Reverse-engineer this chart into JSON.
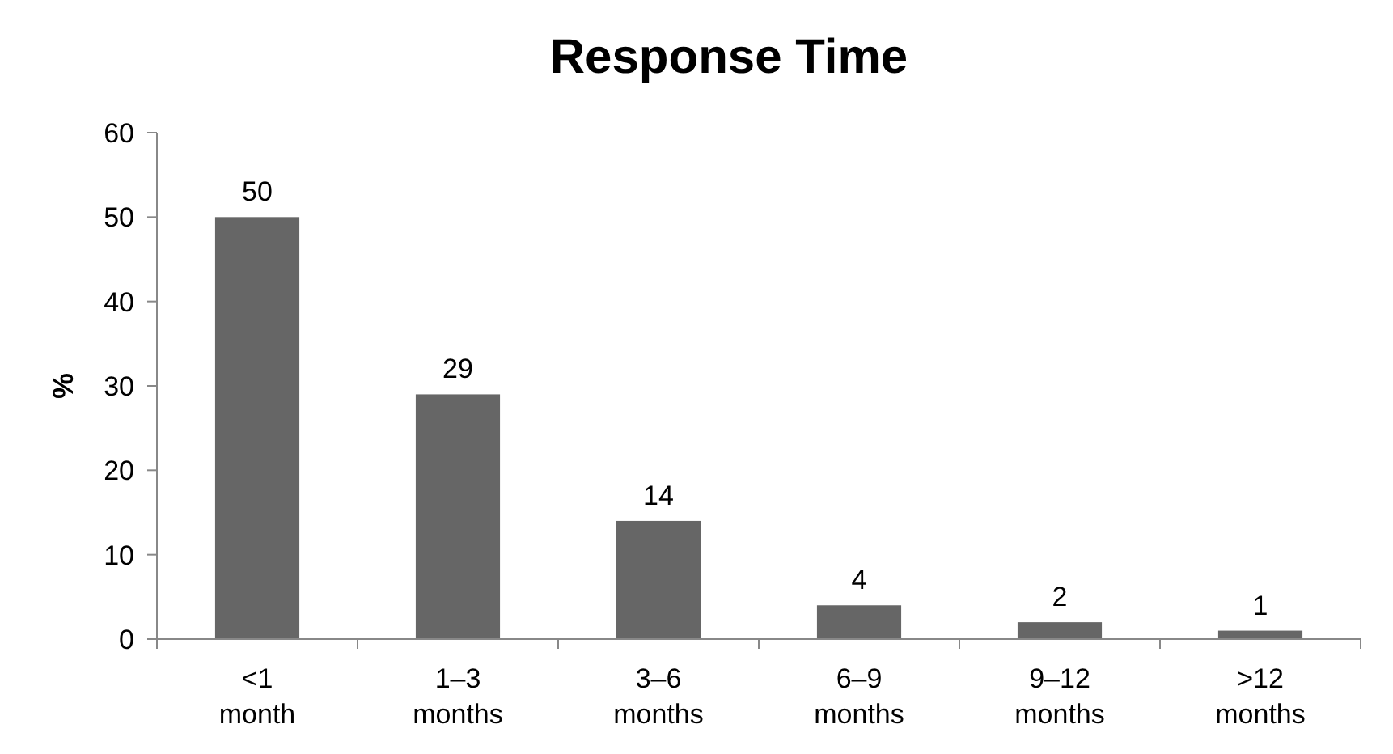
{
  "chart_data": {
    "type": "bar",
    "title": "Response Time",
    "ylabel": "%",
    "categories": [
      "<1\nmonth",
      "1–3\nmonths",
      "3–6\nmonths",
      "6–9\nmonths",
      "9–12\nmonths",
      ">12\nmonths"
    ],
    "values": [
      50,
      29,
      14,
      4,
      2,
      1
    ],
    "color": "#666666",
    "ylim": [
      0,
      60
    ],
    "yticks": [
      0,
      10,
      20,
      30,
      40,
      50,
      60
    ],
    "data_labels": true,
    "grid": false
  }
}
